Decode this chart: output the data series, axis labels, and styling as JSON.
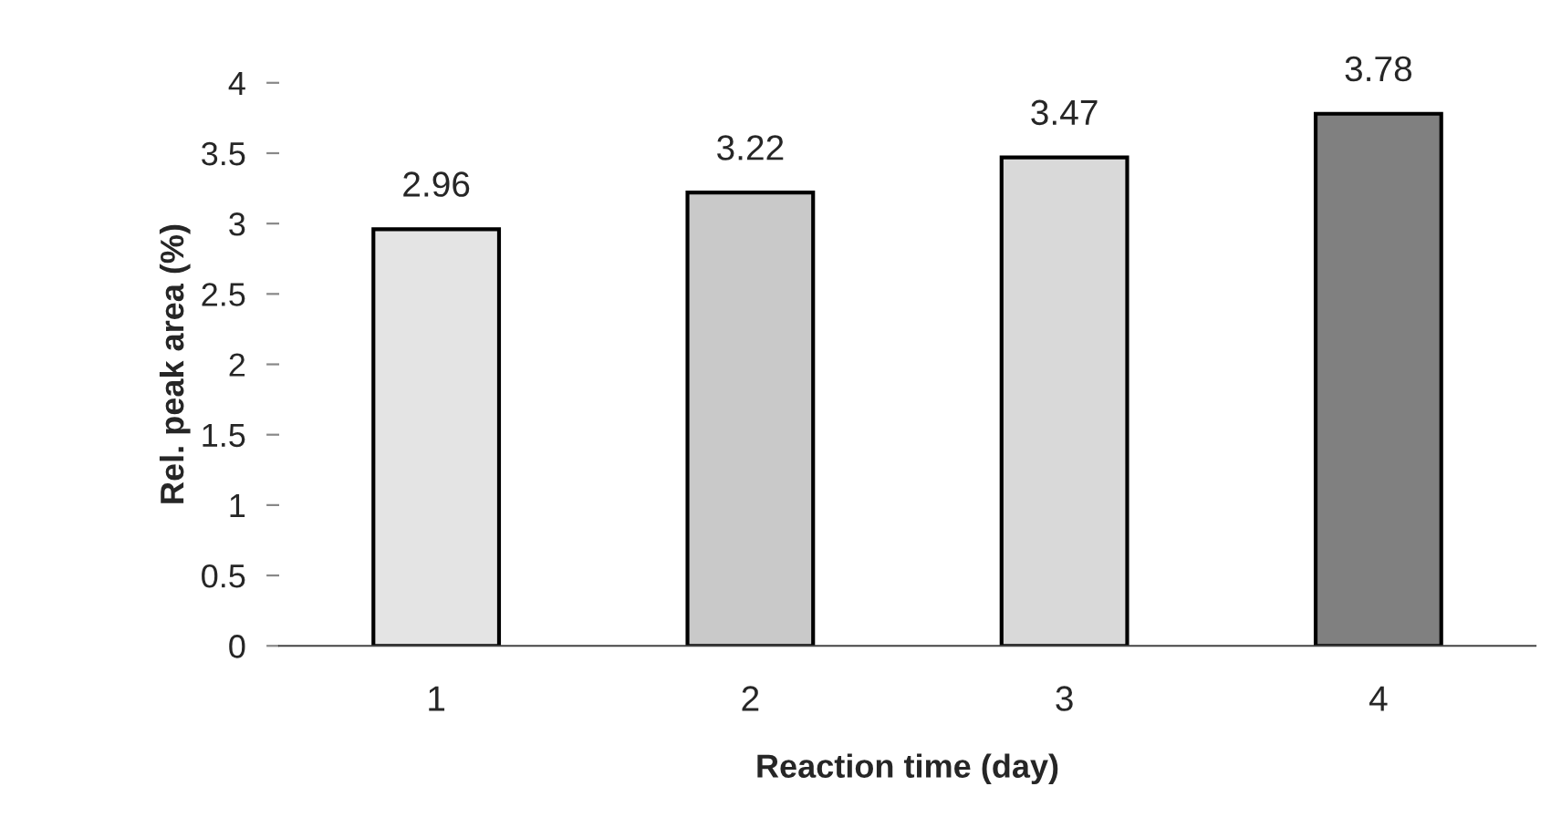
{
  "chart_data": {
    "type": "bar",
    "xlabel": "Reaction time (day)",
    "ylabel": "Rel. peak area (%)",
    "categories": [
      "1",
      "2",
      "3",
      "4"
    ],
    "values": [
      2.96,
      3.22,
      3.47,
      3.78
    ],
    "colors": [
      "#e4e4e4",
      "#c9c9c9",
      "#d9d9d9",
      "#808080"
    ],
    "ylim": [
      0,
      4
    ],
    "yticks": [
      0,
      0.5,
      1,
      1.5,
      2,
      2.5,
      3,
      3.5,
      4
    ],
    "data_labels": true,
    "grid": false,
    "legend": false
  }
}
